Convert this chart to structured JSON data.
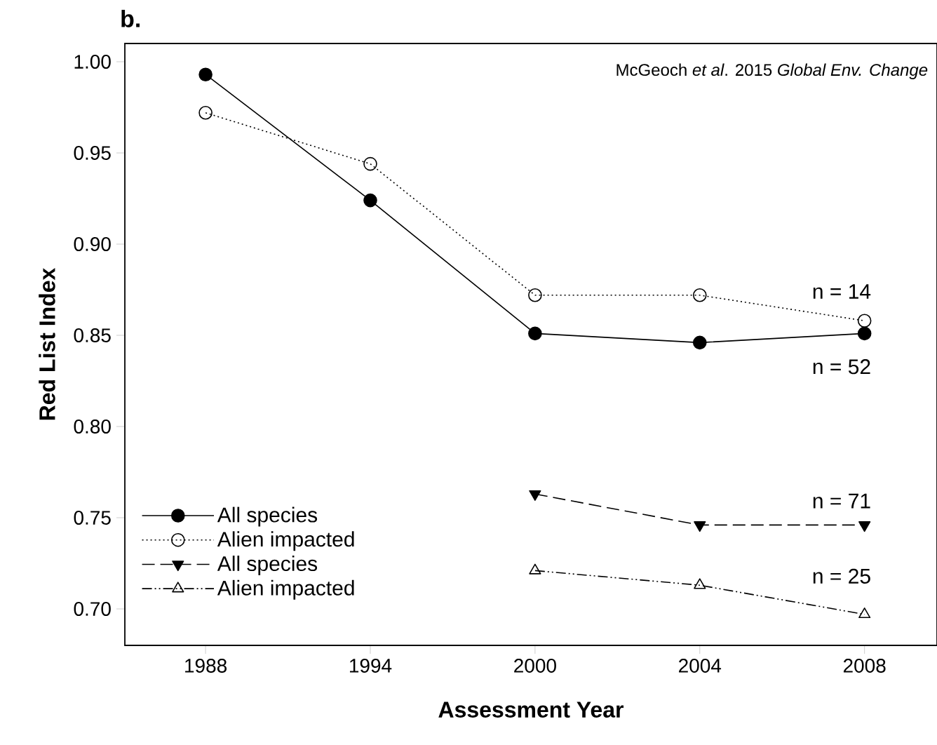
{
  "chart_data": {
    "type": "line",
    "title": "b.",
    "xlabel": "Assessment Year",
    "ylabel": "Red List Index",
    "categories": [
      "1988",
      "1994",
      "2000",
      "2004",
      "2008"
    ],
    "ylim": [
      0.68,
      1.01
    ],
    "yticks": [
      {
        "value": 0.7,
        "label": "0.70"
      },
      {
        "value": 0.75,
        "label": "0.75"
      },
      {
        "value": 0.8,
        "label": "0.80"
      },
      {
        "value": 0.85,
        "label": "0.85"
      },
      {
        "value": 0.9,
        "label": "0.90"
      },
      {
        "value": 0.95,
        "label": "0.95"
      },
      {
        "value": 1.0,
        "label": "1.00"
      }
    ],
    "legend": "bottom left",
    "series": [
      {
        "name": "All species",
        "color": "#000000",
        "marker": "circle",
        "line_style": "solid",
        "values": [
          0.993,
          0.924,
          0.851,
          0.846,
          0.851
        ]
      },
      {
        "name": "Alien impacted",
        "color": "#000000",
        "marker": "circle-open",
        "line_style": "dotted",
        "values": [
          0.972,
          0.944,
          0.872,
          0.872,
          0.858
        ]
      },
      {
        "name": "All species",
        "color": "#000000",
        "marker": "triangle-down",
        "line_style": "dashed",
        "values": [
          null,
          null,
          0.763,
          0.746,
          0.746
        ]
      },
      {
        "name": "Alien impacted",
        "color": "#000000",
        "marker": "triangle-open",
        "line_style": "dashdotdotted",
        "values": [
          null,
          null,
          0.721,
          0.713,
          0.697
        ]
      }
    ],
    "annotations": [
      "McGeoch *et al*. 2015 *Global Env. Change*",
      "n = 14",
      "n = 52",
      "n = 71",
      "n = 25"
    ]
  }
}
